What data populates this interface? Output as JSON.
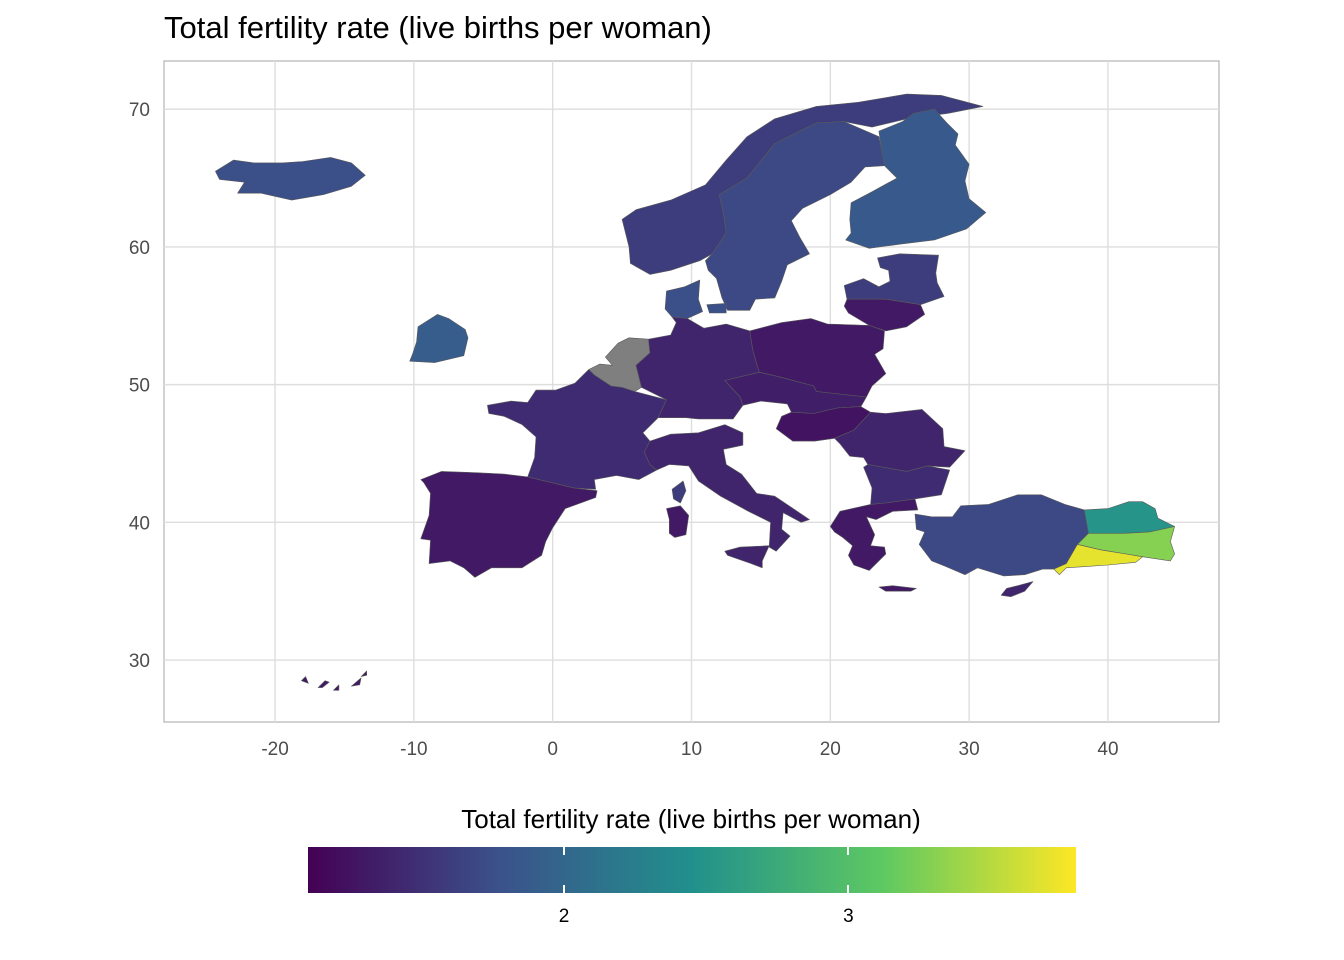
{
  "title": "Total fertility rate (live births per woman)",
  "legend": {
    "title": "Total fertility rate (live births per woman)",
    "breaks": [
      2,
      3
    ],
    "break_labels": [
      "2",
      "3"
    ],
    "range": [
      1.1,
      3.8
    ],
    "palette": [
      "#440154",
      "#3b528b",
      "#21908c",
      "#5ec962",
      "#fde725"
    ],
    "missing_color": "#7f7f7f"
  },
  "chart_data": {
    "type": "choropleth",
    "title": "Total fertility rate (live births per woman)",
    "xlim": [
      -28,
      48
    ],
    "ylim": [
      25.5,
      73.5
    ],
    "x_ticks": [
      -20,
      -10,
      0,
      10,
      20,
      30,
      40
    ],
    "x_tick_labels": [
      "-20",
      "-10",
      "0",
      "10",
      "20",
      "30",
      "40"
    ],
    "y_ticks": [
      30,
      40,
      50,
      60,
      70
    ],
    "y_tick_labels": [
      "30",
      "40",
      "50",
      "60",
      "70"
    ],
    "grid": true,
    "regions": [
      {
        "name": "Iceland",
        "value": 1.75
      },
      {
        "name": "Norway",
        "value": 1.6
      },
      {
        "name": "Sweden",
        "value": 1.7
      },
      {
        "name": "Finland",
        "value": 1.85
      },
      {
        "name": "Baltics",
        "value": 1.6
      },
      {
        "name": "Lithuania",
        "value": 1.3
      },
      {
        "name": "Denmark",
        "value": 1.75
      },
      {
        "name": "Ireland",
        "value": 1.9
      },
      {
        "name": "Benelux",
        "value": null
      },
      {
        "name": "France",
        "value": 1.45
      },
      {
        "name": "Germany",
        "value": 1.4
      },
      {
        "name": "Poland",
        "value": 1.3
      },
      {
        "name": "Czechia/Slovakia",
        "value": 1.35
      },
      {
        "name": "Hungary",
        "value": 1.25
      },
      {
        "name": "Romania",
        "value": 1.4
      },
      {
        "name": "Bulgaria",
        "value": 1.45
      },
      {
        "name": "Italy",
        "value": 1.4
      },
      {
        "name": "Iberia",
        "value": 1.3
      },
      {
        "name": "Corsica",
        "value": 1.6
      },
      {
        "name": "Sardinia",
        "value": 1.3
      },
      {
        "name": "Sicily",
        "value": 1.4
      },
      {
        "name": "Greece",
        "value": 1.3
      },
      {
        "name": "Western Turkey",
        "value": 1.7
      },
      {
        "name": "Cyprus",
        "value": 1.4
      },
      {
        "name": "Canary Islands",
        "value": 1.3
      },
      {
        "name": "Eastern Turkey North",
        "value": 2.5
      },
      {
        "name": "Eastern Turkey",
        "value": 3.3
      },
      {
        "name": "Southeastern Turkey",
        "value": 3.7
      }
    ]
  }
}
